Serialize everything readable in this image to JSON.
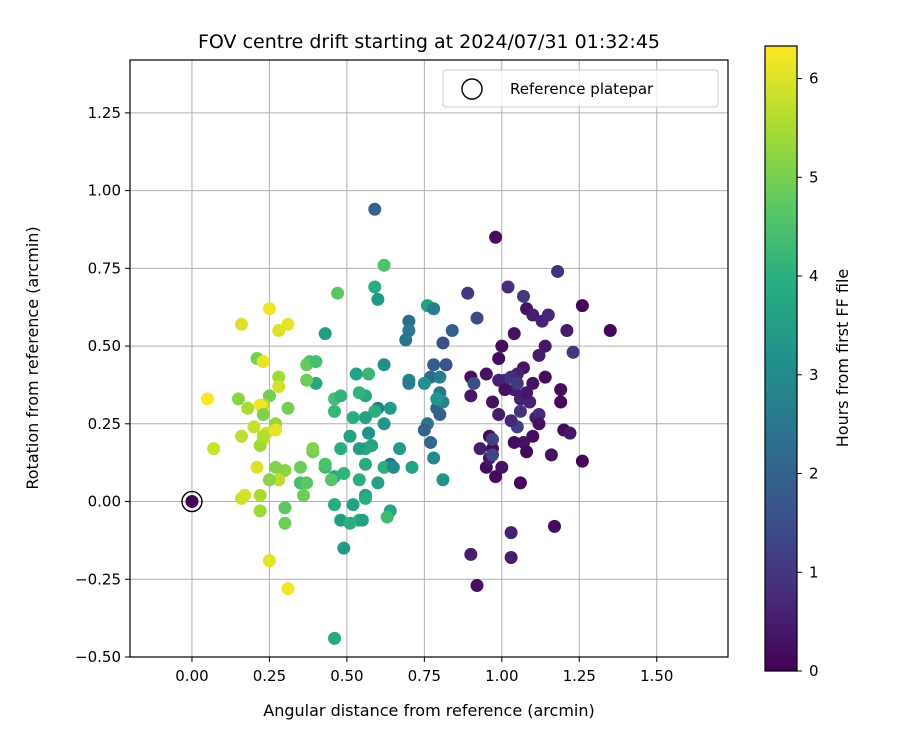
{
  "chart_data": {
    "type": "scatter",
    "title": "FOV centre drift starting at 2024/07/31 01:32:45",
    "xlabel": "Angular distance from reference (arcmin)",
    "ylabel": "Rotation from reference (arcmin)",
    "xlim": [
      -0.2,
      1.73
    ],
    "ylim": [
      -0.5,
      1.42
    ],
    "xticks": [
      0.0,
      0.25,
      0.5,
      0.75,
      1.0,
      1.25,
      1.5
    ],
    "xtick_labels": [
      "0.00",
      "0.25",
      "0.50",
      "0.75",
      "1.00",
      "1.25",
      "1.50"
    ],
    "yticks": [
      -0.5,
      -0.25,
      0.0,
      0.25,
      0.5,
      0.75,
      1.0,
      1.25
    ],
    "ytick_labels": [
      "−0.50",
      "−0.25",
      "0.00",
      "0.25",
      "0.50",
      "0.75",
      "1.00",
      "1.25"
    ],
    "grid": true,
    "colormap": "viridis",
    "colorbar": {
      "label": "Hours from first FF file",
      "range": [
        0,
        6.33
      ],
      "ticks": [
        0,
        1,
        2,
        3,
        4,
        5,
        6
      ],
      "tick_labels": [
        "0",
        "1",
        "2",
        "3",
        "4",
        "5",
        "6"
      ]
    },
    "legend": {
      "position": "top-right",
      "entries": [
        "Reference platepar"
      ]
    },
    "reference_point": {
      "x": 0.0,
      "y": 0.0,
      "label": "Reference platepar"
    },
    "points": [
      {
        "x": 0.0,
        "y": 0.0,
        "h": 0.0
      },
      {
        "x": 0.98,
        "y": 0.85,
        "h": 0.2
      },
      {
        "x": 1.35,
        "y": 0.55,
        "h": 0.1
      },
      {
        "x": 1.26,
        "y": 0.63,
        "h": 0.1
      },
      {
        "x": 1.26,
        "y": 0.13,
        "h": 0.1
      },
      {
        "x": 1.17,
        "y": -0.08,
        "h": 0.2
      },
      {
        "x": 0.92,
        "y": -0.27,
        "h": 0.3
      },
      {
        "x": 0.9,
        "y": -0.17,
        "h": 0.5
      },
      {
        "x": 1.03,
        "y": -0.18,
        "h": 0.5
      },
      {
        "x": 1.03,
        "y": -0.1,
        "h": 0.6
      },
      {
        "x": 1.0,
        "y": 0.5,
        "h": 0.2
      },
      {
        "x": 0.99,
        "y": 0.46,
        "h": 0.2
      },
      {
        "x": 1.04,
        "y": 0.54,
        "h": 0.3
      },
      {
        "x": 1.08,
        "y": 0.62,
        "h": 0.3
      },
      {
        "x": 1.1,
        "y": 0.6,
        "h": 0.5
      },
      {
        "x": 1.13,
        "y": 0.58,
        "h": 0.6
      },
      {
        "x": 1.15,
        "y": 0.6,
        "h": 0.7
      },
      {
        "x": 1.18,
        "y": 0.74,
        "h": 0.9
      },
      {
        "x": 1.21,
        "y": 0.55,
        "h": 0.5
      },
      {
        "x": 1.23,
        "y": 0.48,
        "h": 1.0
      },
      {
        "x": 1.14,
        "y": 0.5,
        "h": 0.4
      },
      {
        "x": 1.12,
        "y": 0.47,
        "h": 0.5
      },
      {
        "x": 1.02,
        "y": 0.69,
        "h": 0.8
      },
      {
        "x": 1.07,
        "y": 0.66,
        "h": 1.1
      },
      {
        "x": 1.19,
        "y": 0.36,
        "h": 0.2
      },
      {
        "x": 1.19,
        "y": 0.32,
        "h": 0.1
      },
      {
        "x": 1.2,
        "y": 0.23,
        "h": 0.2
      },
      {
        "x": 1.22,
        "y": 0.22,
        "h": 0.4
      },
      {
        "x": 1.14,
        "y": 0.4,
        "h": 0.2
      },
      {
        "x": 1.1,
        "y": 0.38,
        "h": 0.3
      },
      {
        "x": 1.07,
        "y": 0.43,
        "h": 0.4
      },
      {
        "x": 1.05,
        "y": 0.41,
        "h": 0.6
      },
      {
        "x": 1.03,
        "y": 0.4,
        "h": 0.8
      },
      {
        "x": 1.01,
        "y": 0.39,
        "h": 1.0
      },
      {
        "x": 1.04,
        "y": 0.36,
        "h": 0.5
      },
      {
        "x": 1.06,
        "y": 0.33,
        "h": 0.6
      },
      {
        "x": 1.06,
        "y": 0.29,
        "h": 0.9
      },
      {
        "x": 1.05,
        "y": 0.24,
        "h": 1.2
      },
      {
        "x": 1.03,
        "y": 0.26,
        "h": 0.7
      },
      {
        "x": 1.11,
        "y": 0.27,
        "h": 0.5
      },
      {
        "x": 1.12,
        "y": 0.28,
        "h": 0.7
      },
      {
        "x": 1.09,
        "y": 0.32,
        "h": 0.6
      },
      {
        "x": 1.08,
        "y": 0.35,
        "h": 0.4
      },
      {
        "x": 1.12,
        "y": 0.25,
        "h": 0.3
      },
      {
        "x": 1.1,
        "y": 0.21,
        "h": 0.2
      },
      {
        "x": 1.07,
        "y": 0.19,
        "h": 0.3
      },
      {
        "x": 1.04,
        "y": 0.19,
        "h": 0.2
      },
      {
        "x": 1.08,
        "y": 0.16,
        "h": 0.1
      },
      {
        "x": 1.16,
        "y": 0.15,
        "h": 0.3
      },
      {
        "x": 1.06,
        "y": 0.06,
        "h": 0.1
      },
      {
        "x": 0.98,
        "y": 0.08,
        "h": 0.1
      },
      {
        "x": 0.95,
        "y": 0.11,
        "h": 0.2
      },
      {
        "x": 1.0,
        "y": 0.11,
        "h": 0.3
      },
      {
        "x": 0.96,
        "y": 0.14,
        "h": 0.4
      },
      {
        "x": 0.97,
        "y": 0.17,
        "h": 0.2
      },
      {
        "x": 0.93,
        "y": 0.17,
        "h": 0.5
      },
      {
        "x": 0.96,
        "y": 0.21,
        "h": 0.2
      },
      {
        "x": 0.97,
        "y": 0.32,
        "h": 0.3
      },
      {
        "x": 0.99,
        "y": 0.39,
        "h": 0.6
      },
      {
        "x": 0.99,
        "y": 0.28,
        "h": 0.5
      },
      {
        "x": 1.01,
        "y": 0.36,
        "h": 0.3
      },
      {
        "x": 0.95,
        "y": 0.41,
        "h": 0.3
      },
      {
        "x": 0.9,
        "y": 0.4,
        "h": 0.2
      },
      {
        "x": 0.9,
        "y": 0.34,
        "h": 0.4
      },
      {
        "x": 0.91,
        "y": 0.38,
        "h": 1.5
      },
      {
        "x": 0.89,
        "y": 0.67,
        "h": 1.0
      },
      {
        "x": 0.92,
        "y": 0.59,
        "h": 1.4
      },
      {
        "x": 0.97,
        "y": 0.2,
        "h": 1.2
      },
      {
        "x": 0.97,
        "y": 0.15,
        "h": 1.3
      },
      {
        "x": 1.05,
        "y": 0.38,
        "h": 1.1
      },
      {
        "x": 0.59,
        "y": 0.94,
        "h": 2.0
      },
      {
        "x": 0.78,
        "y": 0.44,
        "h": 1.8
      },
      {
        "x": 0.81,
        "y": 0.51,
        "h": 1.5
      },
      {
        "x": 0.84,
        "y": 0.55,
        "h": 1.9
      },
      {
        "x": 0.82,
        "y": 0.44,
        "h": 1.6
      },
      {
        "x": 0.77,
        "y": 0.4,
        "h": 2.2
      },
      {
        "x": 0.8,
        "y": 0.4,
        "h": 2.7
      },
      {
        "x": 0.8,
        "y": 0.35,
        "h": 2.5
      },
      {
        "x": 0.8,
        "y": 0.28,
        "h": 1.9
      },
      {
        "x": 0.79,
        "y": 0.3,
        "h": 2.0
      },
      {
        "x": 0.81,
        "y": 0.32,
        "h": 2.9
      },
      {
        "x": 0.79,
        "y": 0.33,
        "h": 3.3
      },
      {
        "x": 0.76,
        "y": 0.25,
        "h": 2.4
      },
      {
        "x": 0.75,
        "y": 0.23,
        "h": 2.0
      },
      {
        "x": 0.77,
        "y": 0.19,
        "h": 2.1
      },
      {
        "x": 0.78,
        "y": 0.14,
        "h": 3.0
      },
      {
        "x": 0.81,
        "y": 0.07,
        "h": 3.3
      },
      {
        "x": 0.71,
        "y": 0.11,
        "h": 3.6
      },
      {
        "x": 0.64,
        "y": 0.12,
        "h": 2.5
      },
      {
        "x": 0.62,
        "y": 0.11,
        "h": 4.0
      },
      {
        "x": 0.67,
        "y": 0.17,
        "h": 3.4
      },
      {
        "x": 0.65,
        "y": 0.11,
        "h": 3.0
      },
      {
        "x": 0.7,
        "y": 0.58,
        "h": 2.2
      },
      {
        "x": 0.7,
        "y": 0.55,
        "h": 2.5
      },
      {
        "x": 0.69,
        "y": 0.52,
        "h": 2.4
      },
      {
        "x": 0.76,
        "y": 0.63,
        "h": 3.6
      },
      {
        "x": 0.78,
        "y": 0.62,
        "h": 2.7
      },
      {
        "x": 0.7,
        "y": 0.39,
        "h": 2.9
      },
      {
        "x": 0.7,
        "y": 0.38,
        "h": 2.6
      },
      {
        "x": 0.75,
        "y": 0.38,
        "h": 3.2
      },
      {
        "x": 0.6,
        "y": 0.65,
        "h": 3.4
      },
      {
        "x": 0.59,
        "y": 0.69,
        "h": 3.9
      },
      {
        "x": 0.62,
        "y": 0.76,
        "h": 4.5
      },
      {
        "x": 0.62,
        "y": 0.44,
        "h": 3.2
      },
      {
        "x": 0.56,
        "y": 0.34,
        "h": 3.8
      },
      {
        "x": 0.6,
        "y": 0.3,
        "h": 2.7
      },
      {
        "x": 0.59,
        "y": 0.29,
        "h": 4.0
      },
      {
        "x": 0.64,
        "y": 0.3,
        "h": 3.4
      },
      {
        "x": 0.62,
        "y": 0.25,
        "h": 3.3
      },
      {
        "x": 0.57,
        "y": 0.22,
        "h": 3.2
      },
      {
        "x": 0.56,
        "y": 0.27,
        "h": 3.6
      },
      {
        "x": 0.58,
        "y": 0.18,
        "h": 3.6
      },
      {
        "x": 0.56,
        "y": 0.17,
        "h": 3.8
      },
      {
        "x": 0.54,
        "y": 0.17,
        "h": 3.5
      },
      {
        "x": 0.52,
        "y": 0.27,
        "h": 3.9
      },
      {
        "x": 0.53,
        "y": 0.41,
        "h": 3.6
      },
      {
        "x": 0.54,
        "y": 0.35,
        "h": 4.1
      },
      {
        "x": 0.57,
        "y": 0.41,
        "h": 4.2
      },
      {
        "x": 0.51,
        "y": 0.21,
        "h": 3.6
      },
      {
        "x": 0.48,
        "y": 0.17,
        "h": 3.9
      },
      {
        "x": 0.46,
        "y": 0.08,
        "h": 3.8
      },
      {
        "x": 0.49,
        "y": 0.09,
        "h": 4.1
      },
      {
        "x": 0.54,
        "y": 0.07,
        "h": 4.0
      },
      {
        "x": 0.56,
        "y": 0.12,
        "h": 3.9
      },
      {
        "x": 0.6,
        "y": 0.06,
        "h": 3.6
      },
      {
        "x": 0.56,
        "y": 0.02,
        "h": 3.5
      },
      {
        "x": 0.56,
        "y": 0.01,
        "h": 3.9
      },
      {
        "x": 0.52,
        "y": -0.01,
        "h": 3.6
      },
      {
        "x": 0.64,
        "y": -0.03,
        "h": 3.7
      },
      {
        "x": 0.63,
        "y": -0.05,
        "h": 4.3
      },
      {
        "x": 0.54,
        "y": -0.06,
        "h": 4.0
      },
      {
        "x": 0.55,
        "y": -0.06,
        "h": 3.6
      },
      {
        "x": 0.48,
        "y": -0.06,
        "h": 3.5
      },
      {
        "x": 0.51,
        "y": -0.07,
        "h": 4.0
      },
      {
        "x": 0.46,
        "y": -0.01,
        "h": 3.9
      },
      {
        "x": 0.49,
        "y": -0.15,
        "h": 3.4
      },
      {
        "x": 0.46,
        "y": -0.44,
        "h": 3.8
      },
      {
        "x": 0.43,
        "y": 0.54,
        "h": 3.5
      },
      {
        "x": 0.47,
        "y": 0.67,
        "h": 4.7
      },
      {
        "x": 0.46,
        "y": 0.29,
        "h": 4.2
      },
      {
        "x": 0.46,
        "y": 0.33,
        "h": 4.4
      },
      {
        "x": 0.48,
        "y": 0.34,
        "h": 4.1
      },
      {
        "x": 0.4,
        "y": 0.38,
        "h": 3.8
      },
      {
        "x": 0.38,
        "y": 0.45,
        "h": 4.5
      },
      {
        "x": 0.37,
        "y": 0.44,
        "h": 4.8
      },
      {
        "x": 0.4,
        "y": 0.45,
        "h": 4.4
      },
      {
        "x": 0.37,
        "y": 0.39,
        "h": 4.9
      },
      {
        "x": 0.43,
        "y": 0.11,
        "h": 4.3
      },
      {
        "x": 0.43,
        "y": 0.12,
        "h": 4.5
      },
      {
        "x": 0.45,
        "y": 0.07,
        "h": 4.6
      },
      {
        "x": 0.39,
        "y": 0.16,
        "h": 4.9
      },
      {
        "x": 0.39,
        "y": 0.17,
        "h": 5.1
      },
      {
        "x": 0.35,
        "y": 0.11,
        "h": 4.9
      },
      {
        "x": 0.35,
        "y": 0.06,
        "h": 4.4
      },
      {
        "x": 0.37,
        "y": 0.06,
        "h": 4.7
      },
      {
        "x": 0.36,
        "y": 0.02,
        "h": 4.9
      },
      {
        "x": 0.3,
        "y": -0.02,
        "h": 4.7
      },
      {
        "x": 0.3,
        "y": -0.07,
        "h": 4.9
      },
      {
        "x": 0.31,
        "y": 0.3,
        "h": 5.0
      },
      {
        "x": 0.3,
        "y": 0.1,
        "h": 5.2
      },
      {
        "x": 0.27,
        "y": 0.11,
        "h": 5.1
      },
      {
        "x": 0.28,
        "y": 0.07,
        "h": 5.7
      },
      {
        "x": 0.25,
        "y": 0.07,
        "h": 5.2
      },
      {
        "x": 0.27,
        "y": 0.25,
        "h": 5.3
      },
      {
        "x": 0.28,
        "y": 0.4,
        "h": 5.4
      },
      {
        "x": 0.25,
        "y": 0.34,
        "h": 5.0
      },
      {
        "x": 0.21,
        "y": 0.46,
        "h": 5.0
      },
      {
        "x": 0.23,
        "y": 0.45,
        "h": 6.1
      },
      {
        "x": 0.28,
        "y": 0.55,
        "h": 6.0
      },
      {
        "x": 0.31,
        "y": 0.57,
        "h": 6.1
      },
      {
        "x": 0.25,
        "y": 0.62,
        "h": 6.2
      },
      {
        "x": 0.16,
        "y": 0.57,
        "h": 6.0
      },
      {
        "x": 0.28,
        "y": 0.37,
        "h": 5.9
      },
      {
        "x": 0.23,
        "y": 0.31,
        "h": 5.6
      },
      {
        "x": 0.22,
        "y": 0.31,
        "h": 6.2
      },
      {
        "x": 0.18,
        "y": 0.3,
        "h": 5.5
      },
      {
        "x": 0.15,
        "y": 0.33,
        "h": 5.2
      },
      {
        "x": 0.23,
        "y": 0.28,
        "h": 5.1
      },
      {
        "x": 0.2,
        "y": 0.24,
        "h": 5.8
      },
      {
        "x": 0.24,
        "y": 0.22,
        "h": 5.9
      },
      {
        "x": 0.23,
        "y": 0.2,
        "h": 6.0
      },
      {
        "x": 0.27,
        "y": 0.23,
        "h": 6.1
      },
      {
        "x": 0.16,
        "y": 0.21,
        "h": 5.7
      },
      {
        "x": 0.22,
        "y": 0.18,
        "h": 5.4
      },
      {
        "x": 0.07,
        "y": 0.17,
        "h": 5.8
      },
      {
        "x": 0.21,
        "y": 0.11,
        "h": 6.0
      },
      {
        "x": 0.22,
        "y": 0.02,
        "h": 5.5
      },
      {
        "x": 0.16,
        "y": 0.01,
        "h": 5.8
      },
      {
        "x": 0.17,
        "y": 0.02,
        "h": 5.9
      },
      {
        "x": 0.22,
        "y": -0.03,
        "h": 5.4
      },
      {
        "x": 0.25,
        "y": -0.19,
        "h": 6.1
      },
      {
        "x": 0.31,
        "y": -0.28,
        "h": 6.2
      },
      {
        "x": 0.05,
        "y": 0.33,
        "h": 6.3
      },
      {
        "x": 0.23,
        "y": 0.21,
        "h": 5.6
      }
    ]
  }
}
